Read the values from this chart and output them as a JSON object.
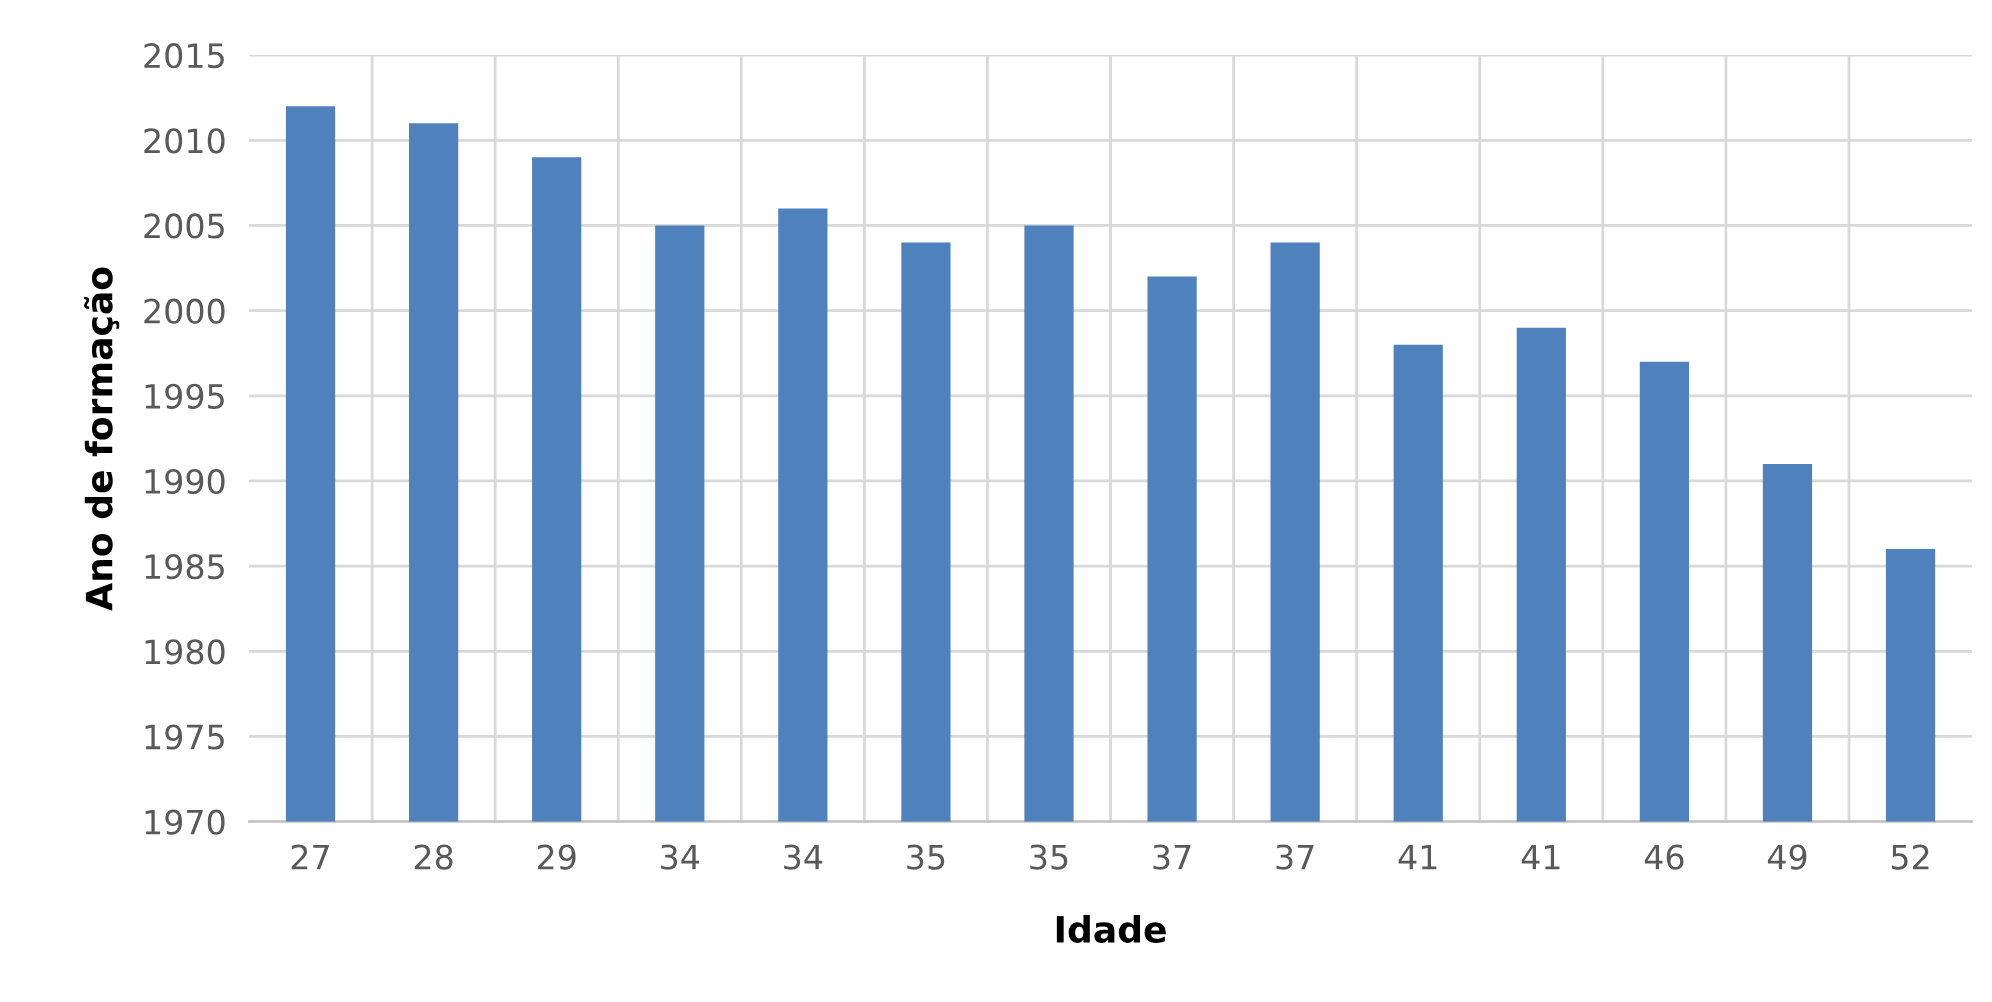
{
  "chart_data": {
    "type": "bar",
    "xlabel": "Idade",
    "ylabel": "Ano de formação",
    "categories": [
      "27",
      "28",
      "29",
      "34",
      "34",
      "35",
      "35",
      "37",
      "37",
      "41",
      "41",
      "46",
      "49",
      "52"
    ],
    "values": [
      2012,
      2011,
      2009,
      2005,
      2006,
      2004,
      2005,
      2002,
      2004,
      1998,
      1999,
      1997,
      1991,
      1986
    ],
    "color": "#4f81bd",
    "ylim": [
      1970,
      2015
    ],
    "yticks": [
      1970,
      1975,
      1980,
      1985,
      1990,
      1995,
      2000,
      2005,
      2010,
      2015
    ],
    "grid": true
  }
}
